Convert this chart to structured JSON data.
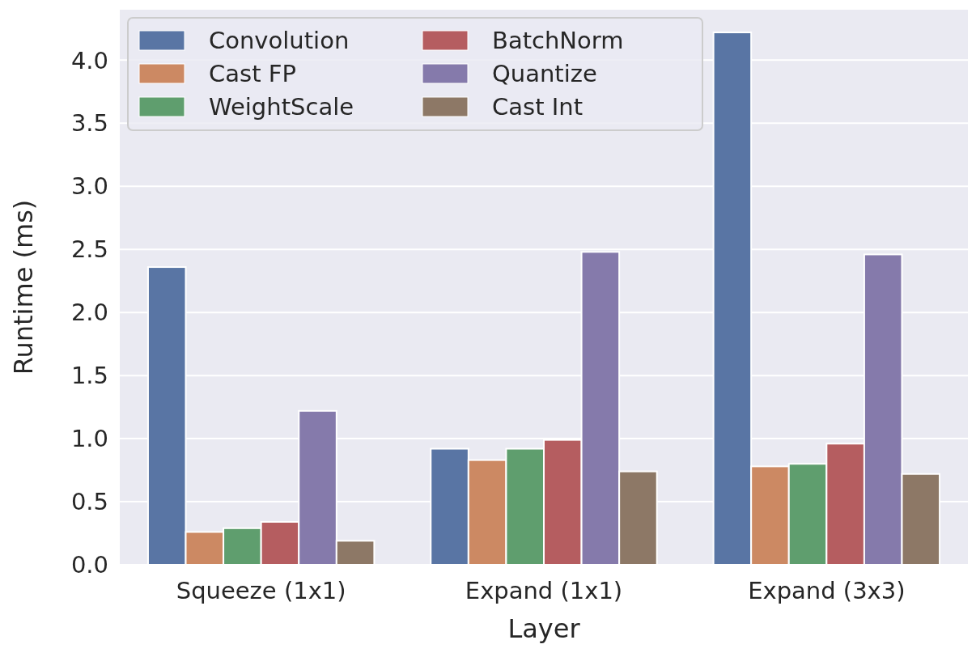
{
  "chart_data": {
    "type": "bar",
    "xlabel": "Layer",
    "ylabel": "Runtime (ms)",
    "categories": [
      "Squeeze (1x1)",
      "Expand (1x1)",
      "Expand (3x3)"
    ],
    "series": [
      {
        "name": "Convolution",
        "color": "#5975a4",
        "values": [
          2.36,
          0.92,
          4.22
        ]
      },
      {
        "name": "Cast FP",
        "color": "#cc8963",
        "values": [
          0.26,
          0.83,
          0.78
        ]
      },
      {
        "name": "WeightScale",
        "color": "#5f9e6e",
        "values": [
          0.29,
          0.92,
          0.8
        ]
      },
      {
        "name": "BatchNorm",
        "color": "#b55d60",
        "values": [
          0.34,
          0.99,
          0.96
        ]
      },
      {
        "name": "Quantize",
        "color": "#857aab",
        "values": [
          1.22,
          2.48,
          2.46
        ]
      },
      {
        "name": "Cast Int",
        "color": "#8d7866",
        "values": [
          0.19,
          0.74,
          0.72
        ]
      }
    ],
    "ylim": [
      0,
      4.4
    ],
    "yticks": [
      {
        "value": 0,
        "label": "0.0"
      },
      {
        "value": 0.5,
        "label": "0.5"
      },
      {
        "value": 1,
        "label": "1.0"
      },
      {
        "value": 1.5,
        "label": "1.5"
      },
      {
        "value": 2,
        "label": "2.0"
      },
      {
        "value": 2.5,
        "label": "2.5"
      },
      {
        "value": 3,
        "label": "3.0"
      },
      {
        "value": 3.5,
        "label": "3.5"
      },
      {
        "value": 4,
        "label": "4.0"
      }
    ],
    "grid": true,
    "legend": "top left"
  }
}
